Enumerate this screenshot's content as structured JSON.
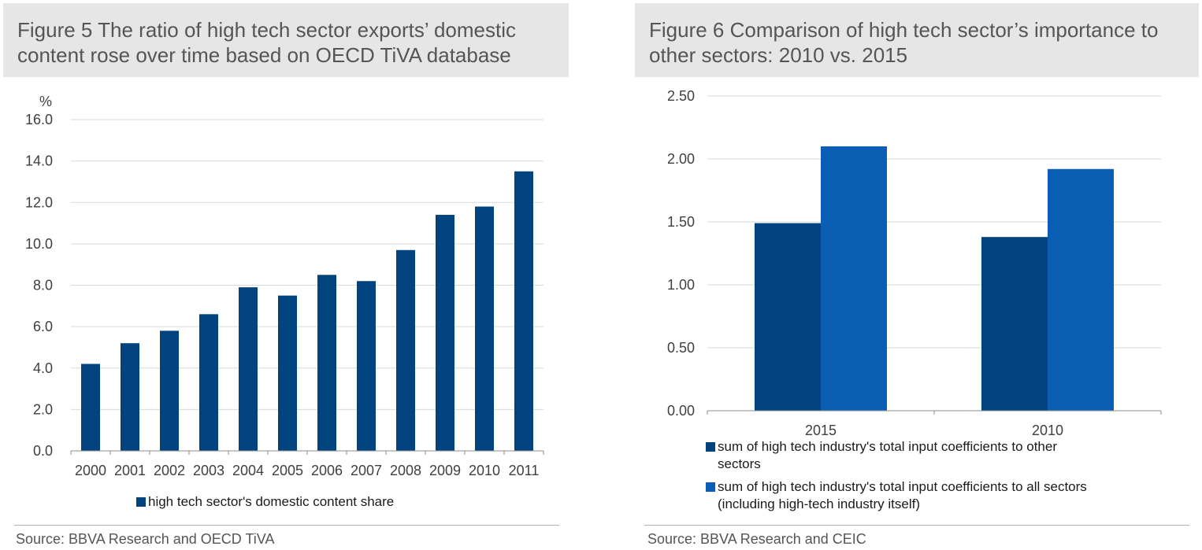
{
  "figures": {
    "fig1_title_line1": "Figure 5 The ratio of high tech sector exports’ domestic",
    "fig1_title_line2": "content rose over time based on OECD TiVA database",
    "fig2_title_line1": "Figure 6 Comparison of high tech sector’s importance to",
    "fig2_title_line2": "other sectors: 2010 vs. 2015",
    "fig1_source": "Source: BBVA Research and OECD TiVA",
    "fig2_source": "Source: BBVA Research and CEIC"
  },
  "chart_data": [
    {
      "type": "bar",
      "title": "Figure 5 The ratio of high tech sector exports’ domestic content rose over time based on OECD TiVA database",
      "ylabel": "%",
      "ylim": [
        0,
        16
      ],
      "yticks": [
        "0.0",
        "2.0",
        "4.0",
        "6.0",
        "8.0",
        "10.0",
        "12.0",
        "14.0",
        "16.0"
      ],
      "categories": [
        "2000",
        "2001",
        "2002",
        "2003",
        "2004",
        "2005",
        "2006",
        "2007",
        "2008",
        "2009",
        "2010",
        "2011"
      ],
      "series": [
        {
          "name": "high tech sector's domestic content share",
          "color": "#00437f",
          "values": [
            4.2,
            5.2,
            5.8,
            6.6,
            7.9,
            7.5,
            8.5,
            8.2,
            9.7,
            11.4,
            11.8,
            13.5
          ]
        }
      ],
      "grid": true,
      "legend": "bottom"
    },
    {
      "type": "bar",
      "title": "Figure 6 Comparison of high tech sector’s importance to other sectors: 2010 vs. 2015",
      "ylim": [
        0,
        2.5
      ],
      "yticks": [
        "0.00",
        "0.50",
        "1.00",
        "1.50",
        "2.00",
        "2.50"
      ],
      "categories": [
        "2015",
        "2010"
      ],
      "series": [
        {
          "name": "sum of high tech industry's total input coefficients to other sectors",
          "color": "#00437f",
          "legend_line1": "sum of high tech industry's total input coefficients to other",
          "legend_line2": "sectors",
          "values": [
            1.49,
            1.38
          ]
        },
        {
          "name": "sum of high tech industry's total input coefficients to all sectors (including high-tech industry itself)",
          "color": "#0a5fb4",
          "legend_line1": "sum of high tech industry's total input coefficients to all sectors",
          "legend_line2": "(including high-tech industry itself)",
          "values": [
            2.1,
            1.92
          ]
        }
      ],
      "grid": true,
      "legend": "bottom"
    }
  ]
}
